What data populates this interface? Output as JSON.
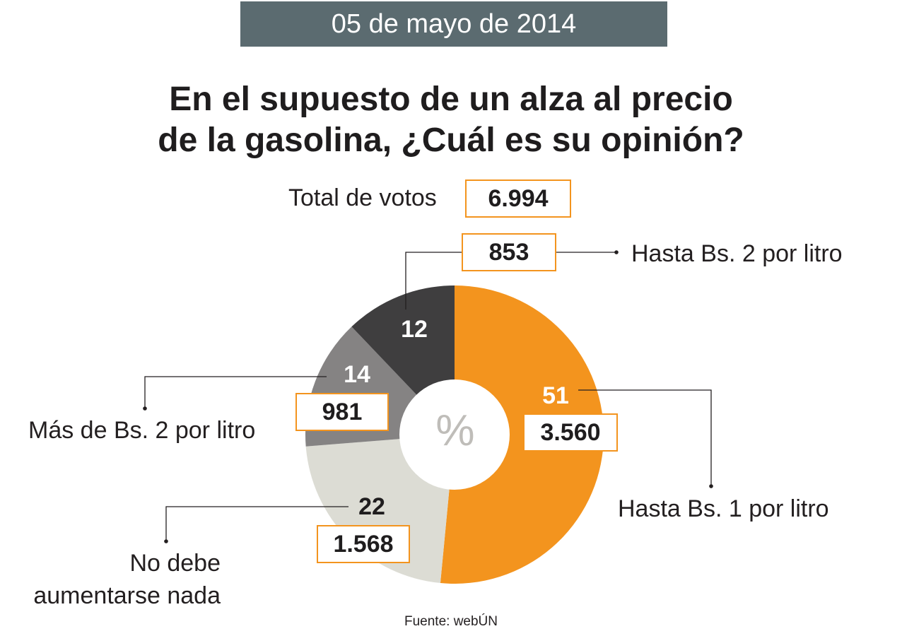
{
  "date": "05 de mayo de 2014",
  "chart_data": {
    "type": "pie",
    "title_lines": [
      "En el supuesto de un alza al precio",
      "de la gasolina, ¿Cuál es su opinión?"
    ],
    "center_label": "%",
    "total_label": "Total de votos",
    "total_votes": "6.994",
    "slices": [
      {
        "label": "Hasta Bs. 1 por litro",
        "percent": 51,
        "percent_label": "51",
        "votes": "3.560",
        "color": "#f3941e"
      },
      {
        "label_lines": [
          "No debe",
          "aumentarse nada"
        ],
        "percent": 22,
        "percent_label": "22",
        "votes": "1.568",
        "color": "#dcdcd4"
      },
      {
        "label": "Más de Bs. 2 por litro",
        "percent": 14,
        "percent_label": "14",
        "votes": "981",
        "color": "#858383"
      },
      {
        "label": "Hasta Bs. 2 por litro",
        "percent": 12,
        "percent_label": "12",
        "votes": "853",
        "color": "#3f3e3f"
      }
    ],
    "source": "Fuente: webÚN"
  },
  "colors": {
    "banner": "#5b6b70",
    "accent": "#f3941e",
    "leader": "#231f20"
  }
}
